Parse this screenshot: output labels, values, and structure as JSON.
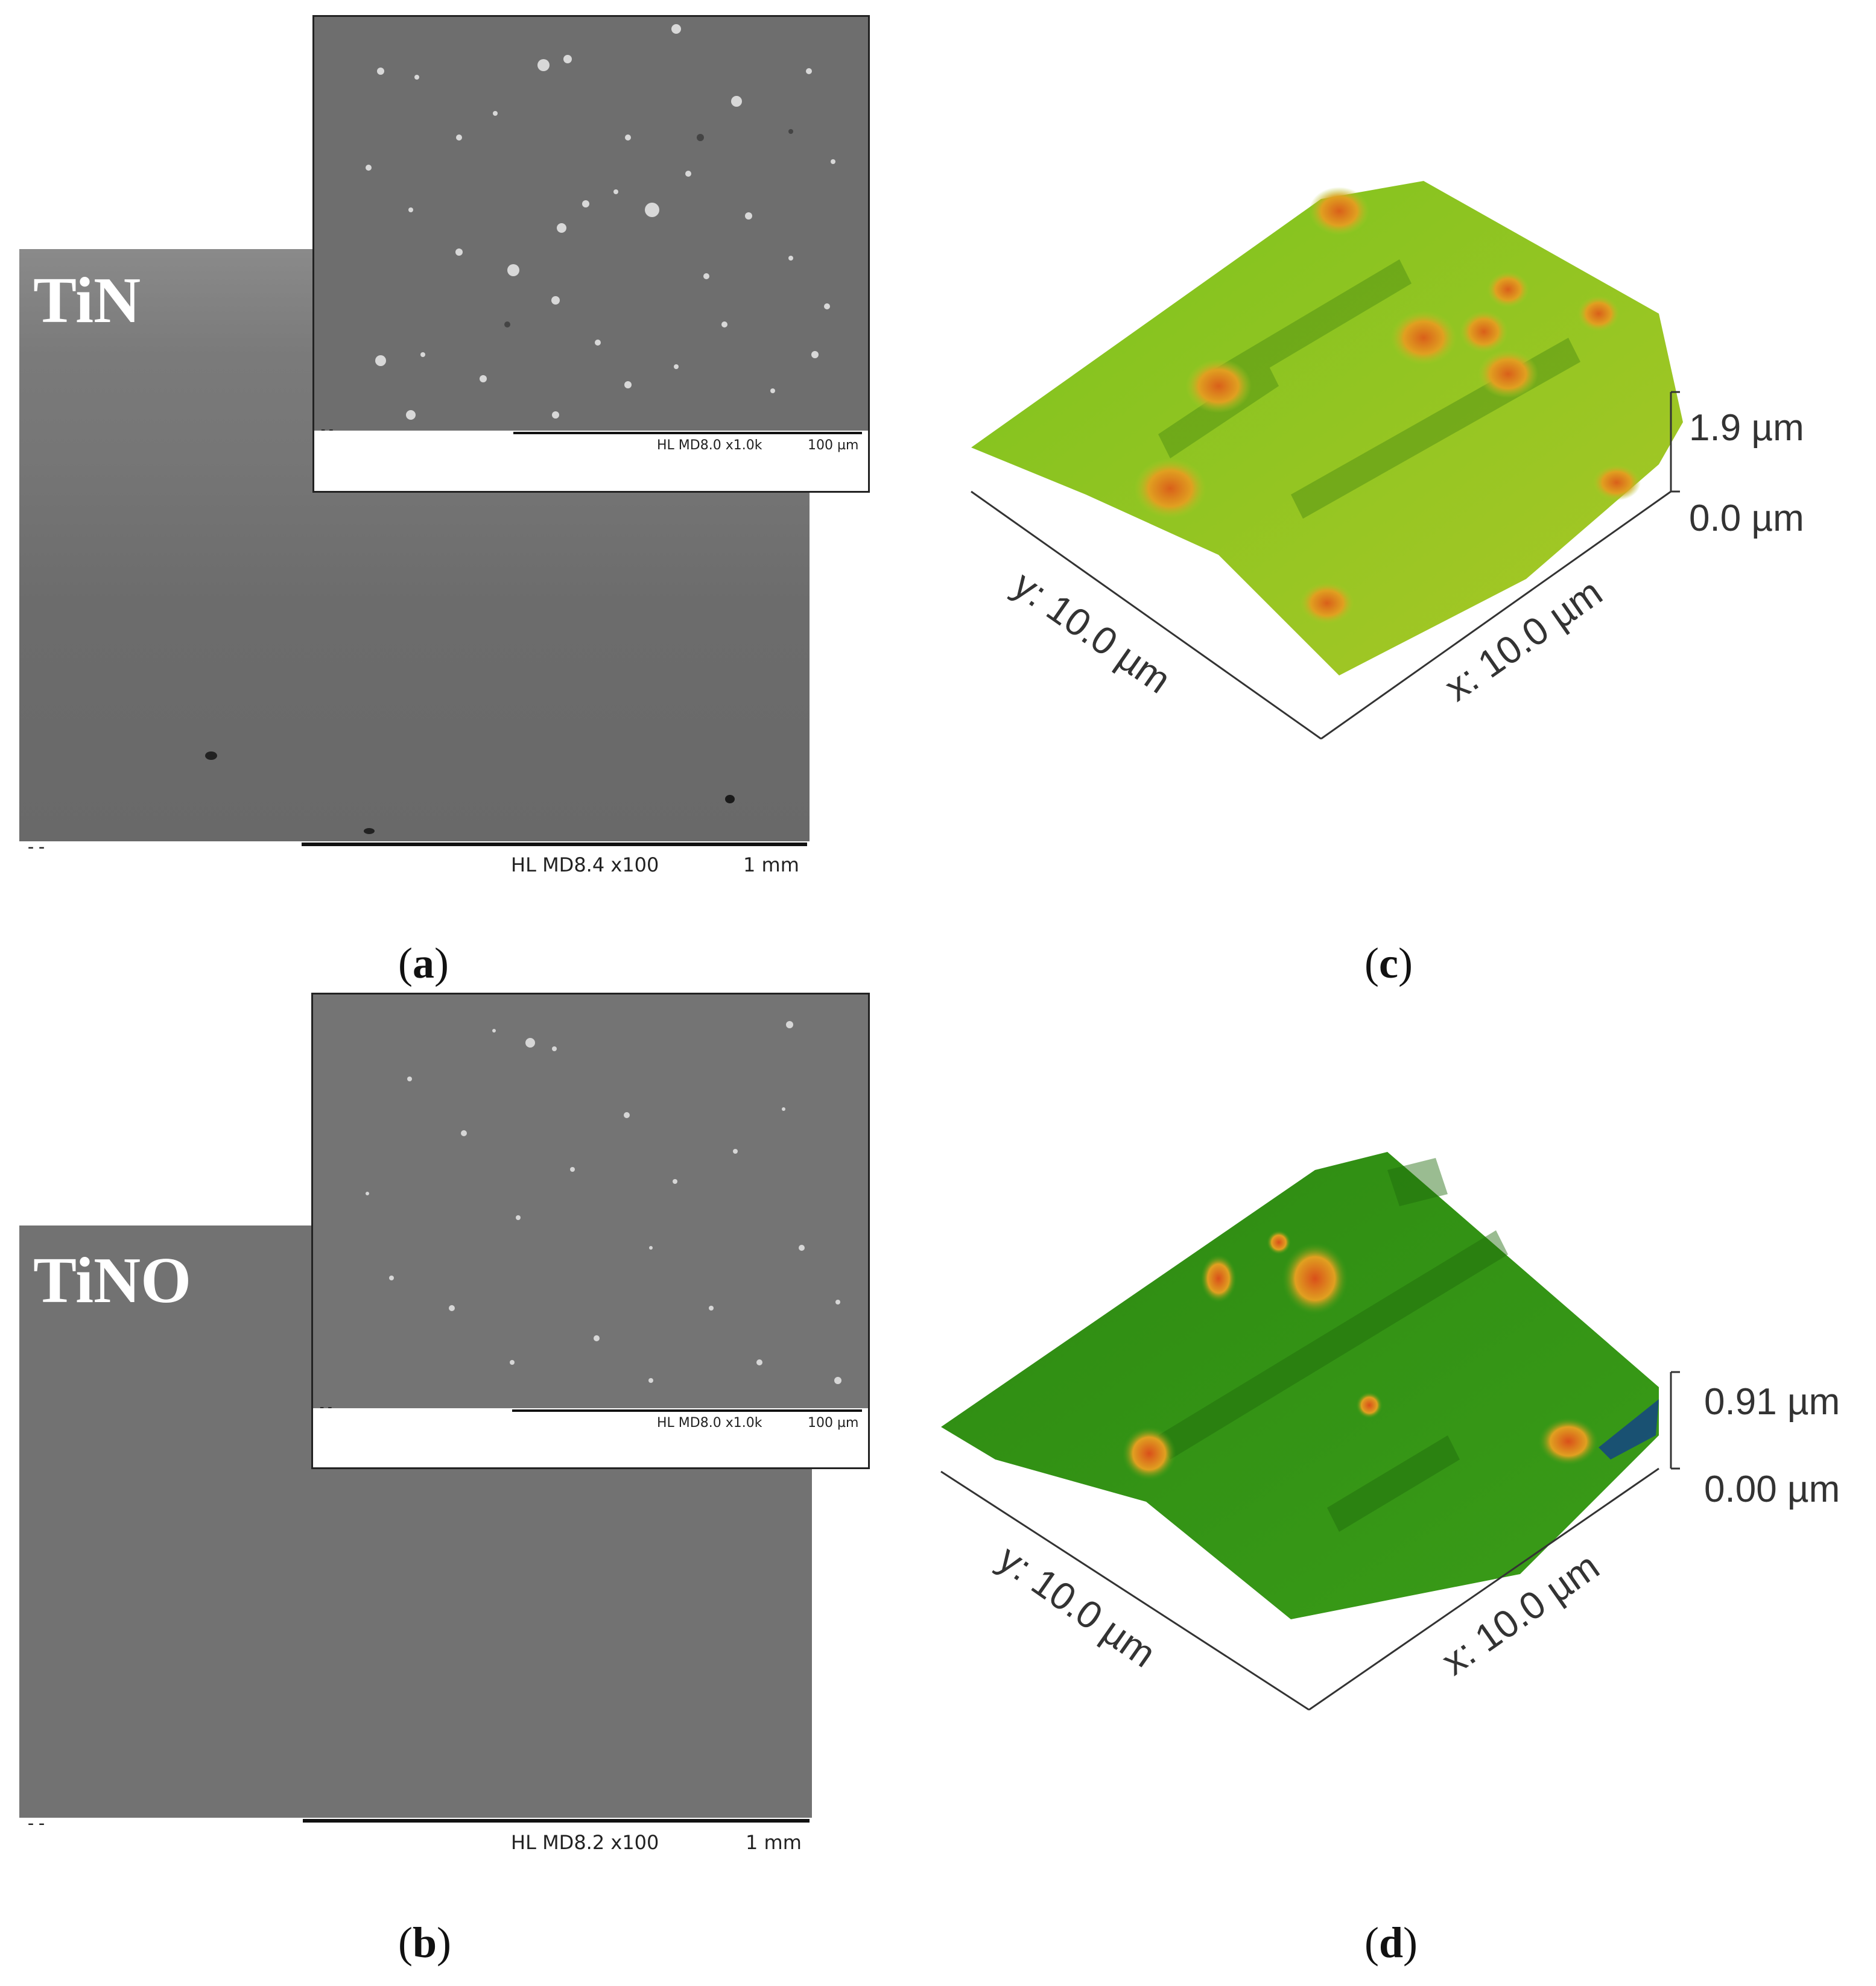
{
  "panels": {
    "a": {
      "label": "a",
      "sample": "TiN",
      "main_meta": "HL MD8.4   x100",
      "main_scale": "1 mm",
      "main_dashes": "--",
      "inset_meta": "HL MD8.0  x1.0k",
      "inset_scale": "100 µm",
      "inset_dashes": "--"
    },
    "b": {
      "label": "b",
      "sample": "TiNO",
      "main_meta": "HL MD8.2   x100",
      "main_scale": "1 mm",
      "main_dashes": "--",
      "inset_meta": "HL MD8.0  x1.0k",
      "inset_scale": "100 µm",
      "inset_dashes": "--"
    },
    "c": {
      "label": "c",
      "z_max": "1.9 µm",
      "z_min": "0.0 µm",
      "y_axis": "y: 10.0 µm",
      "x_axis": "x: 10.0 µm",
      "surface_colors": [
        "#7cc21e",
        "#a9c826",
        "#e0a020",
        "#d9601a"
      ]
    },
    "d": {
      "label": "d",
      "z_max": "0.91 µm",
      "z_min": "0.00 µm",
      "y_axis": "y: 10.0 µm",
      "x_axis": "x: 10.0 µm",
      "surface_colors": [
        "#2d8a12",
        "#3a9c18",
        "#e0a020",
        "#d9501a"
      ]
    }
  }
}
